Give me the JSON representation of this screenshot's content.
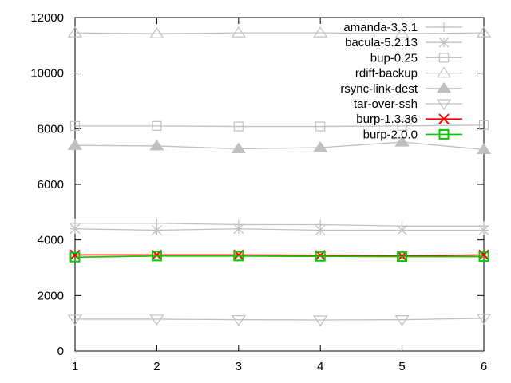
{
  "chart_data": {
    "type": "line",
    "title": "",
    "xlabel": "",
    "ylabel": "",
    "x": [
      1,
      2,
      3,
      4,
      5,
      6
    ],
    "xlim": [
      1,
      6
    ],
    "ylim": [
      0,
      12000
    ],
    "xticks": [
      1,
      2,
      3,
      4,
      5,
      6
    ],
    "yticks": [
      0,
      2000,
      4000,
      6000,
      8000,
      10000,
      12000
    ],
    "grid": false,
    "legend_position": "top-right",
    "series": [
      {
        "name": "amanda-3.3.1",
        "color": "#c0c0c0",
        "marker": "plus",
        "values": [
          4600,
          4600,
          4550,
          4550,
          4500,
          4500
        ]
      },
      {
        "name": "bacula-5.2.13",
        "color": "#c0c0c0",
        "marker": "star",
        "values": [
          4400,
          4350,
          4400,
          4350,
          4350,
          4350
        ]
      },
      {
        "name": "bup-0.25",
        "color": "#c0c0c0",
        "marker": "square-open",
        "values": [
          8100,
          8100,
          8080,
          8080,
          8100,
          8130
        ]
      },
      {
        "name": "rdiff-backup",
        "color": "#c0c0c0",
        "marker": "triangle-open",
        "values": [
          11450,
          11420,
          11450,
          11450,
          11420,
          11450
        ]
      },
      {
        "name": "rsync-link-dest",
        "color": "#c0c0c0",
        "marker": "triangle-filled",
        "values": [
          7400,
          7380,
          7280,
          7320,
          7520,
          7250
        ]
      },
      {
        "name": "tar-over-ssh",
        "color": "#c0c0c0",
        "marker": "triangle-down-open",
        "values": [
          1150,
          1150,
          1130,
          1120,
          1130,
          1180
        ]
      },
      {
        "name": "burp-1.3.36",
        "color": "#ff0000",
        "marker": "x",
        "values": [
          3460,
          3460,
          3460,
          3450,
          3420,
          3460
        ]
      },
      {
        "name": "burp-2.0.0",
        "color": "#00cc00",
        "marker": "square-open",
        "values": [
          3380,
          3420,
          3420,
          3410,
          3400,
          3400
        ]
      }
    ]
  }
}
